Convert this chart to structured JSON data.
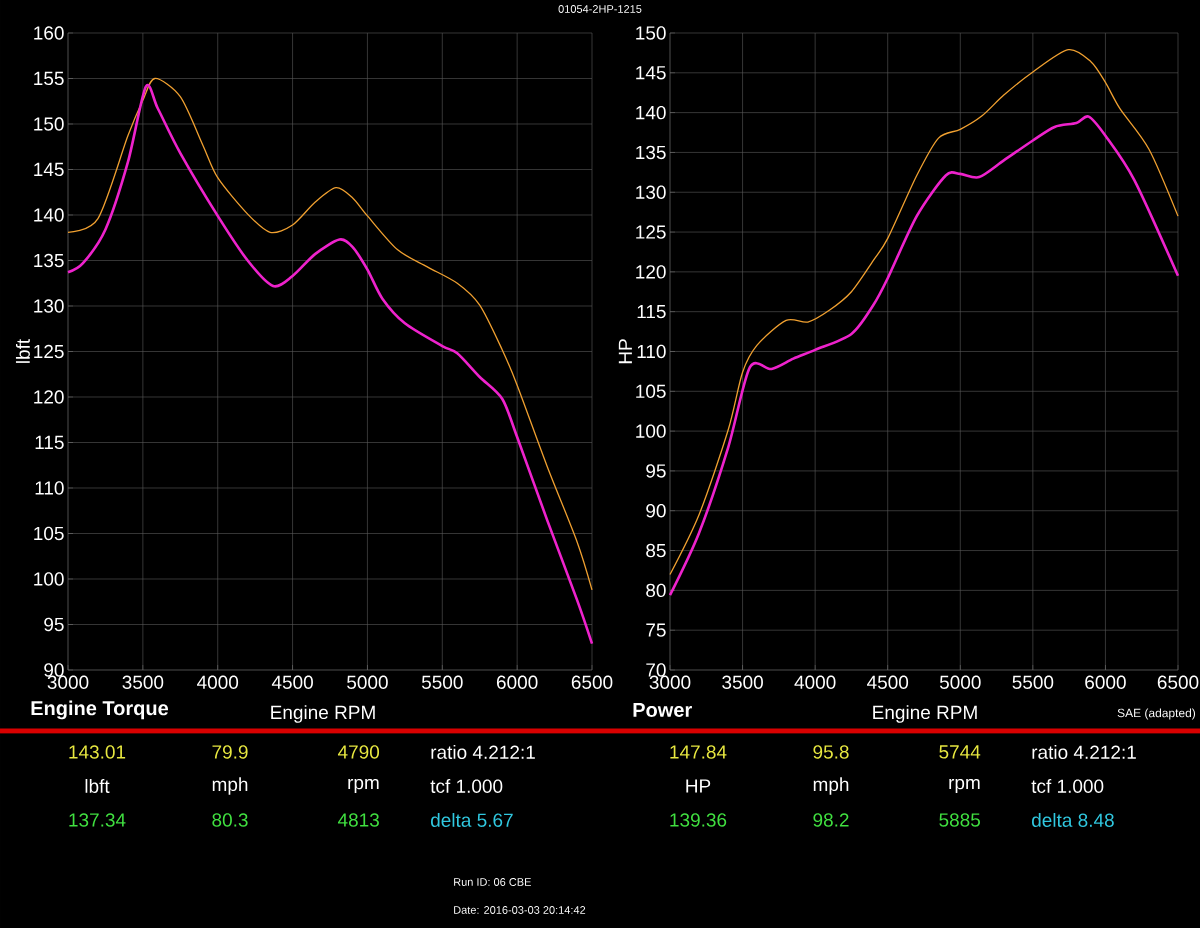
{
  "chart_data": [
    {
      "type": "line",
      "title": "Engine Torque",
      "xlabel": "Engine RPM",
      "ylabel": "lbft",
      "xlim": [
        3000,
        6500
      ],
      "xticks": [
        3000,
        3500,
        4000,
        4500,
        5000,
        5500,
        6000,
        6500
      ],
      "ylim": [
        90,
        160
      ],
      "yticks": [
        90,
        95,
        100,
        105,
        110,
        115,
        120,
        125,
        130,
        135,
        140,
        145,
        150,
        155,
        160
      ],
      "grid": true,
      "series": [
        {
          "color": "#f0a030",
          "x": [
            3000,
            3200,
            3400,
            3500,
            3580,
            3750,
            3900,
            4000,
            4200,
            4350,
            4500,
            4650,
            4790,
            4900,
            5000,
            5200,
            5400,
            5600,
            5750,
            5900,
            6000,
            6200,
            6400,
            6500
          ],
          "values": [
            138.1,
            139.6,
            148.7,
            152.6,
            155.0,
            153.0,
            147.7,
            144.1,
            140.1,
            138.1,
            138.9,
            141.4,
            143.0,
            141.9,
            139.9,
            136.2,
            134.3,
            132.5,
            130.1,
            125.2,
            121.3,
            112.4,
            104.1,
            98.8
          ]
        },
        {
          "color": "#ee22cc",
          "x": [
            3000,
            3100,
            3250,
            3400,
            3520,
            3600,
            3750,
            4000,
            4200,
            4370,
            4500,
            4650,
            4813,
            4900,
            5000,
            5100,
            5250,
            5500,
            5600,
            5750,
            5900,
            6000,
            6200,
            6400,
            6500
          ],
          "values": [
            133.7,
            134.7,
            138.4,
            145.8,
            154.1,
            151.7,
            146.8,
            139.9,
            135.0,
            132.2,
            133.3,
            135.7,
            137.3,
            136.5,
            134.0,
            130.8,
            128.1,
            125.6,
            124.8,
            122.2,
            119.8,
            115.6,
            106.5,
            97.7,
            92.9
          ]
        }
      ],
      "annotations": [
        "143.01",
        "79.9",
        "4790",
        "ratio 4.212:1",
        "lbft",
        "mph",
        "rpm",
        "tcf 1.000",
        "137.34",
        "80.3",
        "4813",
        "delta 5.67",
        "01054-2HP-1215",
        "Run ID: 06 CBE",
        "Date: 2016-03-03 20:14:42"
      ]
    },
    {
      "type": "line",
      "title": "Power",
      "xlabel": "Engine RPM",
      "ylabel": "HP",
      "xlim": [
        3000,
        6500
      ],
      "xticks": [
        3000,
        3500,
        4000,
        4500,
        5000,
        5500,
        6000,
        6500
      ],
      "ylim": [
        70,
        150
      ],
      "yticks": [
        70,
        75,
        80,
        85,
        90,
        95,
        100,
        105,
        110,
        115,
        120,
        125,
        130,
        135,
        140,
        145,
        150
      ],
      "grid": true,
      "series": [
        {
          "color": "#f0a030",
          "x": [
            3000,
            3200,
            3400,
            3500,
            3600,
            3800,
            3950,
            4100,
            4250,
            4400,
            4500,
            4700,
            4850,
            5000,
            5150,
            5300,
            5500,
            5744,
            5900,
            6000,
            6100,
            6300,
            6500
          ],
          "values": [
            82.0,
            89.5,
            100.1,
            107.4,
            110.8,
            113.9,
            113.7,
            115.2,
            117.5,
            121.4,
            124.2,
            132.1,
            136.8,
            137.9,
            139.6,
            142.2,
            145.1,
            147.9,
            146.4,
            143.8,
            140.5,
            135.4,
            127.0
          ]
        },
        {
          "color": "#ee22cc",
          "x": [
            3000,
            3200,
            3400,
            3550,
            3700,
            3850,
            4000,
            4250,
            4400,
            4500,
            4700,
            4900,
            5000,
            5130,
            5300,
            5500,
            5650,
            5800,
            5885,
            6000,
            6200,
            6500
          ],
          "values": [
            79.4,
            87.2,
            97.9,
            108.0,
            107.8,
            109.1,
            110.2,
            112.2,
            115.8,
            119.2,
            127.0,
            132.1,
            132.3,
            131.9,
            134.0,
            136.5,
            138.2,
            138.7,
            139.5,
            137.1,
            131.5,
            119.5
          ]
        }
      ],
      "annotations": [
        "147.84",
        "95.8",
        "5744",
        "ratio 4.212:1",
        "HP",
        "mph",
        "rpm",
        "tcf 1.000",
        "139.36",
        "98.2",
        "5885",
        "delta 8.48",
        "SAE (adapted)"
      ]
    }
  ]
}
